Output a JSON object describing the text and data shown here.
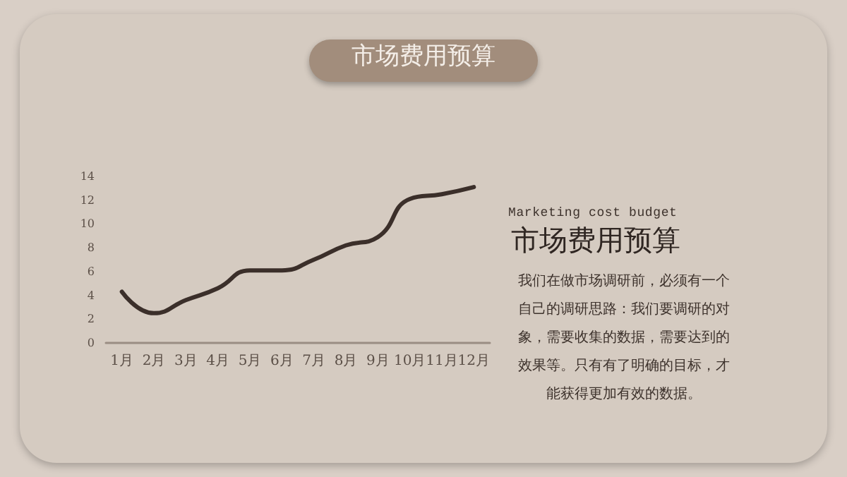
{
  "chart_data": {
    "type": "line",
    "title": "市场费用预算",
    "annotations": [
      "Marketing cost budget",
      "市场费用预算",
      "我们在做市场调研前，必须有一个自己的调研思路：我们要调研的对象，需要收集的数据，需要达到的效果等。只有有了明确的目标，才能获得更加有效的数据。"
    ],
    "categories": [
      "1月",
      "2月",
      "3月",
      "4月",
      "5月",
      "6月",
      "7月",
      "8月",
      "9月",
      "10月",
      "11月",
      "12月"
    ],
    "series": [
      {
        "color": "#3b2f2a",
        "values": [
          4.3,
          2.5,
          3.6,
          4.6,
          6.1,
          6.1,
          7.0,
          8.2,
          8.9,
          12.1,
          12.5,
          13.1
        ]
      }
    ],
    "ylim": [
      0,
      14
    ],
    "yticks": [
      0,
      2,
      4,
      6,
      8,
      10,
      12,
      14
    ],
    "grid": false,
    "marker": "none",
    "line_style": "solid"
  }
}
